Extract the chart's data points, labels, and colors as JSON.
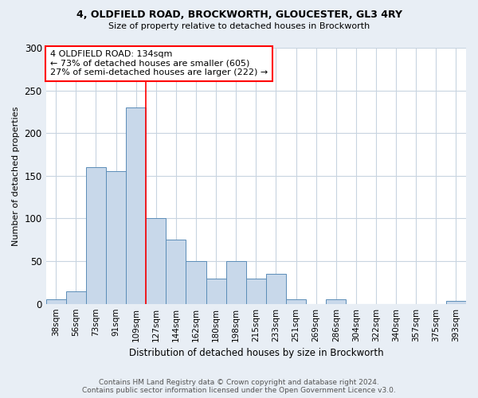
{
  "title1": "4, OLDFIELD ROAD, BROCKWORTH, GLOUCESTER, GL3 4RY",
  "title2": "Size of property relative to detached houses in Brockworth",
  "xlabel": "Distribution of detached houses by size in Brockworth",
  "ylabel": "Number of detached properties",
  "categories": [
    "38sqm",
    "56sqm",
    "73sqm",
    "91sqm",
    "109sqm",
    "127sqm",
    "144sqm",
    "162sqm",
    "180sqm",
    "198sqm",
    "215sqm",
    "233sqm",
    "251sqm",
    "269sqm",
    "286sqm",
    "304sqm",
    "322sqm",
    "340sqm",
    "357sqm",
    "375sqm",
    "393sqm"
  ],
  "values": [
    5,
    15,
    160,
    155,
    230,
    100,
    75,
    50,
    30,
    50,
    30,
    35,
    5,
    0,
    5,
    0,
    0,
    0,
    0,
    0,
    3
  ],
  "bar_color": "#c8d8ea",
  "bar_edge_color": "#5b8db8",
  "vline_x": 4.5,
  "vline_color": "red",
  "annotation_box_text": "4 OLDFIELD ROAD: 134sqm\n← 73% of detached houses are smaller (605)\n27% of semi-detached houses are larger (222) →",
  "annotation_box_color": "white",
  "annotation_box_edge_color": "red",
  "footer1": "Contains HM Land Registry data © Crown copyright and database right 2024.",
  "footer2": "Contains public sector information licensed under the Open Government Licence v3.0.",
  "ylim": [
    0,
    300
  ],
  "yticks": [
    0,
    50,
    100,
    150,
    200,
    250,
    300
  ],
  "bg_color": "#e8eef5",
  "plot_bg_color": "#ffffff",
  "grid_color": "#c8d4e0"
}
